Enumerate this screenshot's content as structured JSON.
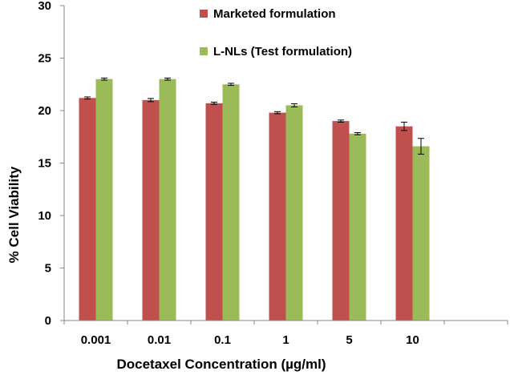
{
  "chart_data": {
    "type": "bar",
    "title": "",
    "xlabel": "Docetaxel Concentration (µg/ml)",
    "ylabel": "% Cell Viability",
    "ylim": [
      0,
      30
    ],
    "yticks": [
      0,
      5,
      10,
      15,
      20,
      25,
      30
    ],
    "categories": [
      "0.001",
      "0.01",
      "0.1",
      "1",
      "5",
      "10",
      ""
    ],
    "grid": false,
    "legend_position": "top-center",
    "series": [
      {
        "name": "Marketed formulation",
        "color": "#C0504D",
        "values": [
          21.2,
          21.0,
          20.7,
          19.8,
          19.0,
          18.5,
          null
        ],
        "errors": [
          0.1,
          0.15,
          0.1,
          0.1,
          0.1,
          0.4,
          null
        ]
      },
      {
        "name": "L-NLs (Test formulation)",
        "color": "#9BBB59",
        "values": [
          23.0,
          23.0,
          22.5,
          20.5,
          17.8,
          16.6,
          null
        ],
        "errors": [
          0.1,
          0.1,
          0.1,
          0.15,
          0.1,
          0.75,
          null
        ]
      }
    ]
  }
}
